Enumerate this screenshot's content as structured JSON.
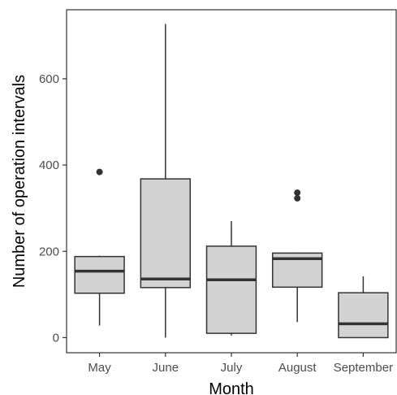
{
  "chart_data": {
    "type": "boxplot",
    "xlabel": "Month",
    "ylabel": "Number of operation intervals",
    "categories": [
      "May",
      "June",
      "July",
      "August",
      "September"
    ],
    "yticks": [
      0,
      200,
      400,
      600
    ],
    "ylim": [
      -35,
      760
    ],
    "grid": false,
    "legend": "none",
    "boxes": [
      {
        "category": "May",
        "min": 28,
        "q1": 103,
        "median": 154,
        "q3": 188,
        "max": 190,
        "outliers": [
          384
        ]
      },
      {
        "category": "June",
        "min": 0,
        "q1": 116,
        "median": 136,
        "q3": 368,
        "max": 727,
        "outliers": []
      },
      {
        "category": "July",
        "min": 5,
        "q1": 10,
        "median": 134,
        "q3": 212,
        "max": 270,
        "outliers": []
      },
      {
        "category": "August",
        "min": 36,
        "q1": 117,
        "median": 183,
        "q3": 196,
        "max": 197,
        "outliers": [
          323,
          336
        ]
      },
      {
        "category": "September",
        "min": 0,
        "q1": 0,
        "median": 32,
        "q3": 104,
        "max": 142,
        "outliers": []
      }
    ],
    "colors": {
      "box_fill": "#d3d3d3",
      "box_stroke": "#333333",
      "panel_border": "#333333",
      "tick_text": "#4d4d4d"
    }
  }
}
